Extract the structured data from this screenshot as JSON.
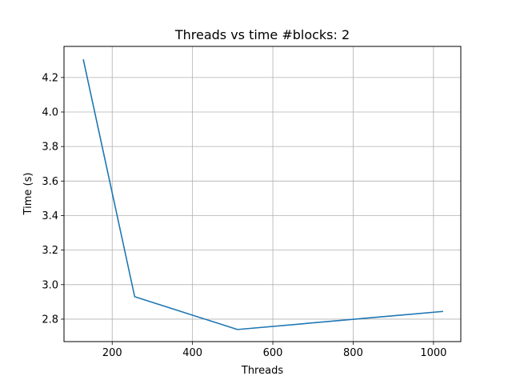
{
  "chart_data": {
    "type": "line",
    "title": "Threads vs time #blocks: 2",
    "xlabel": "Threads",
    "ylabel": "Time (s)",
    "xlim": [
      80,
      1068
    ],
    "ylim": [
      2.67,
      4.38
    ],
    "xticks": [
      200,
      400,
      600,
      800,
      1000
    ],
    "yticks": [
      2.8,
      3.0,
      3.2,
      3.4,
      3.6,
      3.8,
      4.0,
      4.2
    ],
    "ytick_labels": [
      "2.8",
      "3.0",
      "3.2",
      "3.4",
      "3.6",
      "3.8",
      "4.0",
      "4.2"
    ],
    "grid": true,
    "series": [
      {
        "color": "#1f77b4",
        "x": [
          128,
          256,
          512,
          1024
        ],
        "y": [
          4.305,
          2.93,
          2.74,
          2.845
        ]
      }
    ]
  }
}
